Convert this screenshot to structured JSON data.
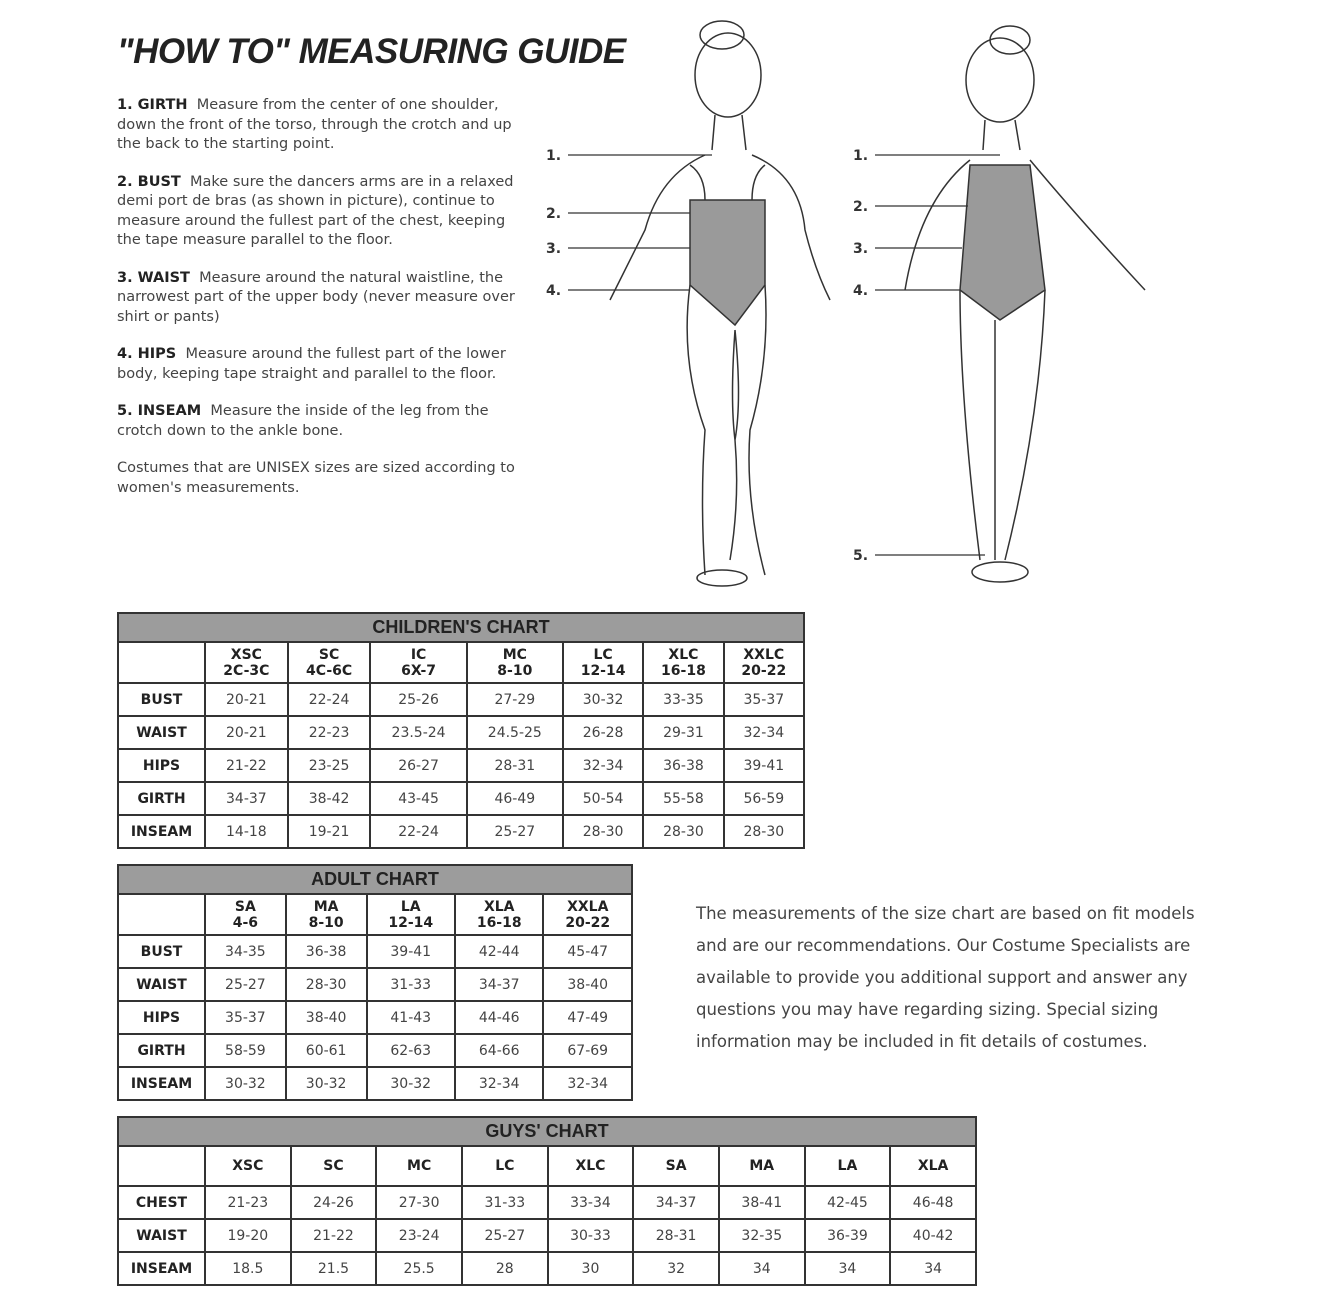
{
  "title": "\"HOW TO\" MEASURING GUIDE",
  "steps": [
    {
      "label": "1. GIRTH",
      "text": "Measure from the center of one shoulder, down the front of the torso, through the crotch and up the back to the starting point."
    },
    {
      "label": "2. BUST",
      "text": "Make sure the dancers arms are in a relaxed demi port de bras (as shown in picture), continue to measure around the fullest part of the chest, keeping the tape measure parallel to the floor."
    },
    {
      "label": "3. WAIST",
      "text": "Measure around the natural waistline, the narrowest part of the upper body (never measure over shirt or pants)"
    },
    {
      "label": "4. HIPS",
      "text": "Measure around the fullest part of the lower body, keeping tape straight and parallel to the floor."
    },
    {
      "label": "5. INSEAM",
      "text": "Measure the inside of the leg from the crotch down to the ankle bone."
    }
  ],
  "unisex_note": "Costumes that are UNISEX sizes are sized according to women's measurements.",
  "figure_labels": {
    "front": [
      "1.",
      "2.",
      "3.",
      "4."
    ],
    "side": [
      "1.",
      "2.",
      "3.",
      "4.",
      "5."
    ]
  },
  "children_chart": {
    "title": "CHILDREN'S CHART",
    "columns": [
      [
        "XSC",
        "2C-3C"
      ],
      [
        "SC",
        "4C-6C"
      ],
      [
        "IC",
        "6X-7"
      ],
      [
        "MC",
        "8-10"
      ],
      [
        "LC",
        "12-14"
      ],
      [
        "XLC",
        "16-18"
      ],
      [
        "XXLC",
        "20-22"
      ]
    ],
    "rows": [
      {
        "label": "BUST",
        "values": [
          "20-21",
          "22-24",
          "25-26",
          "27-29",
          "30-32",
          "33-35",
          "35-37"
        ]
      },
      {
        "label": "WAIST",
        "values": [
          "20-21",
          "22-23",
          "23.5-24",
          "24.5-25",
          "26-28",
          "29-31",
          "32-34"
        ]
      },
      {
        "label": "HIPS",
        "values": [
          "21-22",
          "23-25",
          "26-27",
          "28-31",
          "32-34",
          "36-38",
          "39-41"
        ]
      },
      {
        "label": "GIRTH",
        "values": [
          "34-37",
          "38-42",
          "43-45",
          "46-49",
          "50-54",
          "55-58",
          "56-59"
        ]
      },
      {
        "label": "INSEAM",
        "values": [
          "14-18",
          "19-21",
          "22-24",
          "25-27",
          "28-30",
          "28-30",
          "28-30"
        ]
      }
    ]
  },
  "adult_chart": {
    "title": "ADULT CHART",
    "columns": [
      [
        "SA",
        "4-6"
      ],
      [
        "MA",
        "8-10"
      ],
      [
        "LA",
        "12-14"
      ],
      [
        "XLA",
        "16-18"
      ],
      [
        "XXLA",
        "20-22"
      ]
    ],
    "rows": [
      {
        "label": "BUST",
        "values": [
          "34-35",
          "36-38",
          "39-41",
          "42-44",
          "45-47"
        ]
      },
      {
        "label": "WAIST",
        "values": [
          "25-27",
          "28-30",
          "31-33",
          "34-37",
          "38-40"
        ]
      },
      {
        "label": "HIPS",
        "values": [
          "35-37",
          "38-40",
          "41-43",
          "44-46",
          "47-49"
        ]
      },
      {
        "label": "GIRTH",
        "values": [
          "58-59",
          "60-61",
          "62-63",
          "64-66",
          "67-69"
        ]
      },
      {
        "label": "INSEAM",
        "values": [
          "30-32",
          "30-32",
          "30-32",
          "32-34",
          "32-34"
        ]
      }
    ]
  },
  "guys_chart": {
    "title": "GUYS' CHART",
    "columns": [
      [
        "XSC"
      ],
      [
        "SC"
      ],
      [
        "MC"
      ],
      [
        "LC"
      ],
      [
        "XLC"
      ],
      [
        "SA"
      ],
      [
        "MA"
      ],
      [
        "LA"
      ],
      [
        "XLA"
      ]
    ],
    "rows": [
      {
        "label": "CHEST",
        "values": [
          "21-23",
          "24-26",
          "27-30",
          "31-33",
          "33-34",
          "34-37",
          "38-41",
          "42-45",
          "46-48"
        ]
      },
      {
        "label": "WAIST",
        "values": [
          "19-20",
          "21-22",
          "23-24",
          "25-27",
          "30-33",
          "28-31",
          "32-35",
          "36-39",
          "40-42"
        ]
      },
      {
        "label": "INSEAM",
        "values": [
          "18.5",
          "21.5",
          "25.5",
          "28",
          "30",
          "32",
          "34",
          "34",
          "34"
        ]
      }
    ]
  },
  "fit_note": "The measurements of the size chart are based on fit models and are our recommendations. Our Costume Specialists are available to provide you additional support and answer any questions you may have regarding sizing. Special sizing information may be included in fit details of costumes.",
  "colors": {
    "header_gray": "#9c9c9c",
    "leotard_gray": "#9a9a9a"
  }
}
